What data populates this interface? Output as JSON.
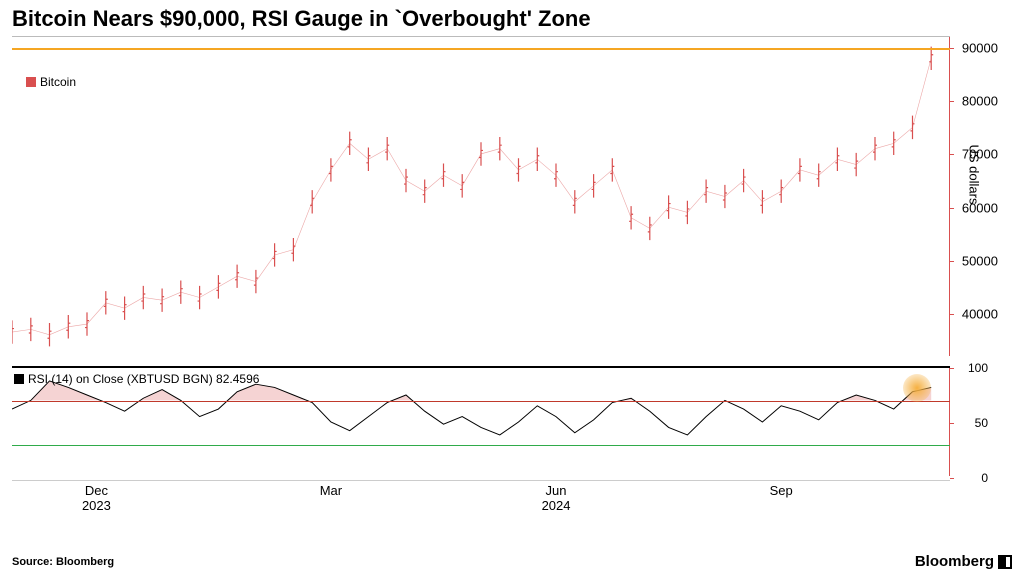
{
  "title": "Bitcoin Nears $90,000, RSI Gauge in `Overbought' Zone",
  "legend": {
    "series_label": "Bitcoin",
    "swatch_color": "#d94f4f"
  },
  "rsi_legend": {
    "label": "RSI (14)  on Close (XBTUSD BGN) 82.4596",
    "swatch_color": "#000000"
  },
  "source": "Source: Bloomberg",
  "brand": "Bloomberg",
  "price_chart": {
    "type": "ohlc-line",
    "yaxis_label": "US dollars",
    "series_color": "#d94f4f",
    "axis_color": "#d94f4f",
    "background_color": "#ffffff",
    "ylim": [
      32000,
      92000
    ],
    "yticks": [
      40000,
      50000,
      60000,
      70000,
      80000,
      90000
    ],
    "ref_line_90000_color": "#f5a623",
    "ref_line_style": "solid",
    "x_range": [
      "2023-11-01",
      "2024-11-15"
    ],
    "data_points": [
      [
        0.0,
        36500
      ],
      [
        0.02,
        37000
      ],
      [
        0.04,
        36000
      ],
      [
        0.06,
        37500
      ],
      [
        0.08,
        38000
      ],
      [
        0.1,
        42000
      ],
      [
        0.12,
        41000
      ],
      [
        0.14,
        43000
      ],
      [
        0.16,
        42500
      ],
      [
        0.18,
        44000
      ],
      [
        0.2,
        43000
      ],
      [
        0.22,
        45000
      ],
      [
        0.24,
        47000
      ],
      [
        0.26,
        46000
      ],
      [
        0.28,
        51000
      ],
      [
        0.3,
        52000
      ],
      [
        0.32,
        61000
      ],
      [
        0.34,
        67000
      ],
      [
        0.36,
        72000
      ],
      [
        0.38,
        69000
      ],
      [
        0.4,
        71000
      ],
      [
        0.42,
        65000
      ],
      [
        0.44,
        63000
      ],
      [
        0.46,
        66000
      ],
      [
        0.48,
        64000
      ],
      [
        0.5,
        70000
      ],
      [
        0.52,
        71000
      ],
      [
        0.54,
        67000
      ],
      [
        0.56,
        69000
      ],
      [
        0.58,
        66000
      ],
      [
        0.6,
        61000
      ],
      [
        0.62,
        64000
      ],
      [
        0.64,
        67000
      ],
      [
        0.66,
        58000
      ],
      [
        0.68,
        56000
      ],
      [
        0.7,
        60000
      ],
      [
        0.72,
        59000
      ],
      [
        0.74,
        63000
      ],
      [
        0.76,
        62000
      ],
      [
        0.78,
        65000
      ],
      [
        0.8,
        61000
      ],
      [
        0.82,
        63000
      ],
      [
        0.84,
        67000
      ],
      [
        0.86,
        66000
      ],
      [
        0.88,
        69000
      ],
      [
        0.9,
        68000
      ],
      [
        0.92,
        71000
      ],
      [
        0.94,
        72000
      ],
      [
        0.96,
        75000
      ],
      [
        0.98,
        88000
      ]
    ],
    "volatility_band": 2200
  },
  "rsi_chart": {
    "type": "line",
    "series_color": "#000000",
    "ylim": [
      0,
      100
    ],
    "yticks": [
      0,
      50,
      100
    ],
    "overbought_level": 70,
    "oversold_level": 30,
    "overbought_line_color": "#c0392b",
    "oversold_line_color": "#2fab4a",
    "overbought_fill_color": "rgba(217,79,79,0.25)",
    "marker_color": "#f5b041",
    "marker_position": 0.965,
    "data_points": [
      [
        0.0,
        62
      ],
      [
        0.02,
        70
      ],
      [
        0.04,
        88
      ],
      [
        0.06,
        82
      ],
      [
        0.08,
        75
      ],
      [
        0.1,
        68
      ],
      [
        0.12,
        60
      ],
      [
        0.14,
        72
      ],
      [
        0.16,
        80
      ],
      [
        0.18,
        70
      ],
      [
        0.2,
        55
      ],
      [
        0.22,
        62
      ],
      [
        0.24,
        78
      ],
      [
        0.26,
        85
      ],
      [
        0.28,
        82
      ],
      [
        0.3,
        75
      ],
      [
        0.32,
        68
      ],
      [
        0.34,
        50
      ],
      [
        0.36,
        42
      ],
      [
        0.38,
        55
      ],
      [
        0.4,
        68
      ],
      [
        0.42,
        75
      ],
      [
        0.44,
        60
      ],
      [
        0.46,
        48
      ],
      [
        0.48,
        55
      ],
      [
        0.5,
        45
      ],
      [
        0.52,
        38
      ],
      [
        0.54,
        50
      ],
      [
        0.56,
        65
      ],
      [
        0.58,
        55
      ],
      [
        0.6,
        40
      ],
      [
        0.62,
        52
      ],
      [
        0.64,
        68
      ],
      [
        0.66,
        72
      ],
      [
        0.68,
        60
      ],
      [
        0.7,
        45
      ],
      [
        0.72,
        38
      ],
      [
        0.74,
        55
      ],
      [
        0.76,
        70
      ],
      [
        0.78,
        62
      ],
      [
        0.8,
        50
      ],
      [
        0.82,
        65
      ],
      [
        0.84,
        60
      ],
      [
        0.86,
        52
      ],
      [
        0.88,
        68
      ],
      [
        0.9,
        75
      ],
      [
        0.92,
        70
      ],
      [
        0.94,
        62
      ],
      [
        0.96,
        78
      ],
      [
        0.98,
        82
      ]
    ]
  },
  "xaxis": {
    "ticks": [
      {
        "pos": 0.09,
        "label": "Dec",
        "year": "2023"
      },
      {
        "pos": 0.34,
        "label": "Mar",
        "year": ""
      },
      {
        "pos": 0.58,
        "label": "Jun",
        "year": "2024"
      },
      {
        "pos": 0.82,
        "label": "Sep",
        "year": ""
      }
    ],
    "tick_fontsize": 13
  }
}
